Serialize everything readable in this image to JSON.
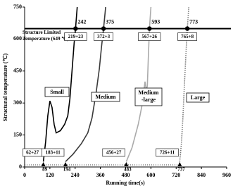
{
  "chart_data": {
    "type": "line",
    "x_label": "Running time(s)",
    "y_label": "Structural temperature (℃)",
    "xlim": [
      0,
      960
    ],
    "xticks": [
      0,
      120,
      240,
      360,
      480,
      600,
      720,
      840,
      960
    ],
    "ylim": [
      0,
      750
    ],
    "yticks": [
      0,
      150,
      300,
      450,
      600,
      750
    ],
    "limit": 649,
    "limit_label": [
      "Structure Limited",
      "Temperature (649 ℃)"
    ],
    "series": [
      {
        "name": "Small",
        "color": "#000000",
        "style": "solid",
        "x": [
          89,
          100,
          110,
          120,
          130,
          140,
          150,
          170,
          190,
          205,
          215,
          225,
          235,
          242,
          250
        ],
        "values": [
          25,
          120,
          240,
          310,
          280,
          200,
          160,
          170,
          200,
          240,
          320,
          450,
          580,
          649,
          750
        ]
      },
      {
        "name": "Medium",
        "color": "#3a3a3a",
        "style": "solid",
        "x": [
          194,
          230,
          270,
          300,
          320,
          340,
          355,
          365,
          375,
          385
        ],
        "values": [
          25,
          60,
          110,
          160,
          230,
          350,
          460,
          560,
          649,
          750
        ]
      },
      {
        "name": "Medium-large",
        "color": "#aaaaaa",
        "style": "solid",
        "x": [
          483,
          510,
          540,
          560,
          572,
          578,
          583,
          588,
          593,
          600
        ],
        "values": [
          25,
          90,
          200,
          300,
          400,
          360,
          380,
          520,
          649,
          750
        ]
      },
      {
        "name": "Large",
        "color": "#777777",
        "style": "dotted",
        "x": [
          737,
          745,
          752,
          758,
          764,
          769,
          773,
          780
        ],
        "values": [
          25,
          110,
          230,
          360,
          480,
          580,
          649,
          750
        ]
      }
    ],
    "limit_crossings": [
      {
        "time": 242,
        "split": "219+23"
      },
      {
        "time": 375,
        "split": "372+3"
      },
      {
        "time": 593,
        "split": "567+26"
      },
      {
        "time": 773,
        "split": "765+8"
      }
    ],
    "ignitions": [
      {
        "time": 89,
        "split": "62+27"
      },
      {
        "time": 194,
        "split": "183+11"
      },
      {
        "time": 483,
        "split": "456+27"
      },
      {
        "time": 737,
        "split": "726+11"
      }
    ]
  }
}
